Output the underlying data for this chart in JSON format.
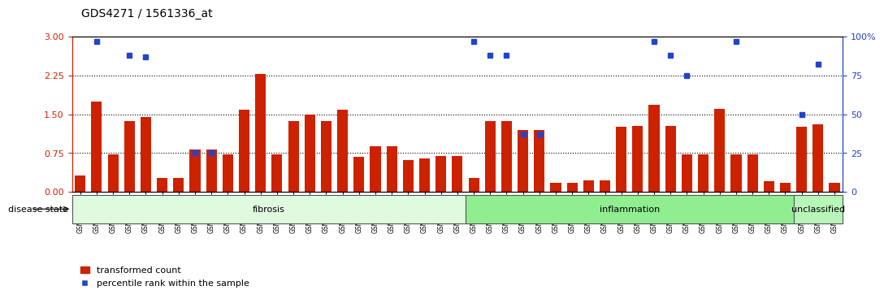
{
  "title": "GDS4271 / 1561336_at",
  "samples": [
    "GSM380382",
    "GSM380383",
    "GSM380384",
    "GSM380385",
    "GSM380386",
    "GSM380387",
    "GSM380388",
    "GSM380389",
    "GSM380390",
    "GSM380391",
    "GSM380392",
    "GSM380393",
    "GSM380394",
    "GSM380395",
    "GSM380396",
    "GSM380397",
    "GSM380398",
    "GSM380399",
    "GSM380400",
    "GSM380401",
    "GSM380402",
    "GSM380403",
    "GSM380404",
    "GSM380405",
    "GSM380406",
    "GSM380407",
    "GSM380408",
    "GSM380409",
    "GSM380410",
    "GSM380411",
    "GSM380412",
    "GSM380413",
    "GSM380414",
    "GSM380415",
    "GSM380416",
    "GSM380417",
    "GSM380418",
    "GSM380419",
    "GSM380420",
    "GSM380421",
    "GSM380422",
    "GSM380423",
    "GSM380424",
    "GSM380425",
    "GSM380426",
    "GSM380427",
    "GSM380428"
  ],
  "bar_values": [
    0.32,
    1.75,
    0.72,
    1.37,
    1.45,
    0.27,
    0.27,
    0.82,
    0.82,
    0.72,
    1.58,
    2.28,
    0.72,
    1.37,
    1.5,
    1.37,
    1.58,
    0.68,
    0.88,
    0.88,
    0.62,
    0.65,
    0.7,
    0.7,
    0.27,
    1.37,
    1.37,
    1.2,
    1.2,
    0.17,
    0.17,
    0.22,
    0.22,
    1.25,
    1.28,
    1.68,
    1.28,
    0.72,
    0.72,
    1.6,
    0.72,
    0.72,
    0.2,
    0.17,
    1.25,
    1.3,
    0.17
  ],
  "dot_values": [
    null,
    97,
    null,
    88,
    87,
    null,
    null,
    25,
    25,
    null,
    null,
    null,
    null,
    null,
    null,
    null,
    null,
    null,
    null,
    null,
    null,
    null,
    null,
    null,
    97,
    88,
    88,
    37,
    37,
    null,
    null,
    null,
    null,
    null,
    null,
    97,
    88,
    75,
    null,
    null,
    97,
    null,
    null,
    null,
    50,
    82,
    null
  ],
  "bar_color": "#cc2200",
  "dot_color": "#2244cc",
  "ylim_left": [
    0,
    3.0
  ],
  "ylim_right": [
    0,
    100
  ],
  "yticks_left": [
    0,
    0.75,
    1.5,
    2.25,
    3.0
  ],
  "yticks_right": [
    0,
    25,
    50,
    75,
    100
  ],
  "right_ytick_labels": [
    "0",
    "25",
    "50",
    "75",
    "100%"
  ],
  "groups": [
    {
      "label": "fibrosis",
      "start": 0,
      "end": 23,
      "color": "#e0fae0"
    },
    {
      "label": "inflammation",
      "start": 24,
      "end": 43,
      "color": "#90ee90"
    },
    {
      "label": "unclassified",
      "start": 44,
      "end": 46,
      "color": "#b8f5b8"
    }
  ],
  "disease_state_label": "disease state",
  "legend_bar_label": "transformed count",
  "legend_dot_label": "percentile rank within the sample",
  "tick_label_color_left": "#cc2200",
  "tick_label_color_right": "#2244cc",
  "xticklabel_bg": "#e0e0e0"
}
